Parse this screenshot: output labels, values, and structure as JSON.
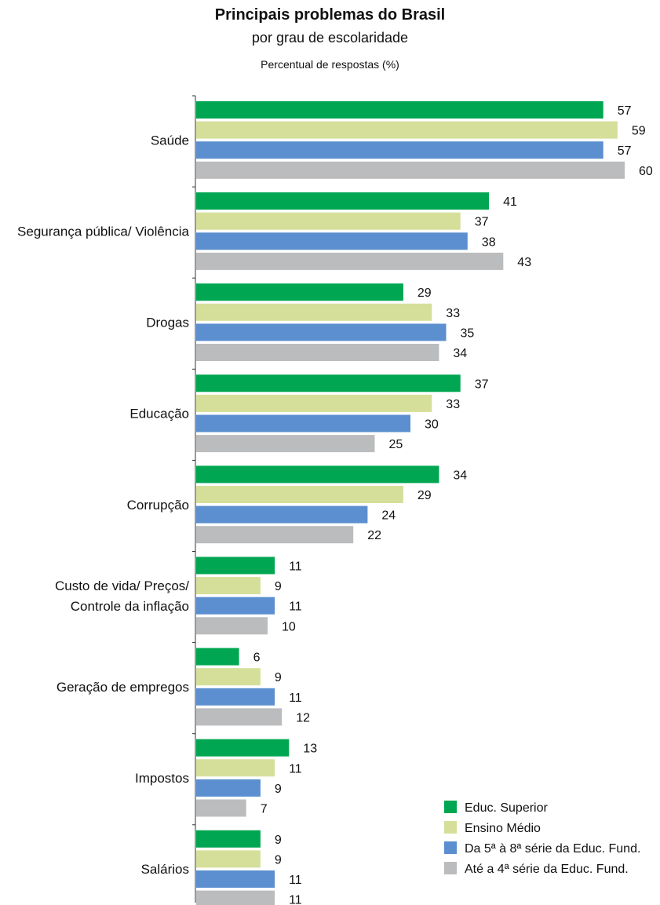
{
  "chart_data": {
    "type": "bar",
    "orientation": "horizontal",
    "title": "Principais problemas do Brasil",
    "subtitle": "por grau de escolaridade",
    "unit_label": "Percentual de respostas (%)",
    "categories": [
      [
        "Saúde"
      ],
      [
        "Segurança pública/ Violência"
      ],
      [
        "Drogas"
      ],
      [
        "Educação"
      ],
      [
        "Corrupção"
      ],
      [
        "Custo de vida/ Preços/",
        "Controle da inflação"
      ],
      [
        "Geração de empregos"
      ],
      [
        "Impostos"
      ],
      [
        "Salários"
      ]
    ],
    "series": [
      {
        "name": "Educ. Superior",
        "color": "#00a651",
        "values": [
          57,
          41,
          29,
          37,
          34,
          11,
          6,
          13,
          9
        ]
      },
      {
        "name": "Ensino Médio",
        "color": "#d5df9a",
        "values": [
          59,
          37,
          33,
          33,
          29,
          9,
          9,
          11,
          9
        ]
      },
      {
        "name": "Da 5ª à 8ª série da Educ. Fund.",
        "color": "#5b8fcf",
        "values": [
          57,
          38,
          35,
          30,
          24,
          11,
          11,
          9,
          11
        ]
      },
      {
        "name": "Até a 4ª série da Educ. Fund.",
        "color": "#bbbcbe",
        "values": [
          60,
          43,
          34,
          25,
          22,
          10,
          12,
          7,
          11
        ]
      }
    ],
    "legend_position": "bottom-right",
    "grid": false
  }
}
